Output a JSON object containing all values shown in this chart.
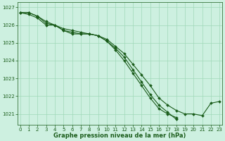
{
  "x": [
    0,
    1,
    2,
    3,
    4,
    5,
    6,
    7,
    8,
    9,
    10,
    11,
    12,
    13,
    14,
    15,
    16,
    17,
    18,
    19,
    20,
    21,
    22,
    23
  ],
  "line1": [
    1026.7,
    1026.7,
    1026.5,
    1026.2,
    1026.0,
    1025.8,
    1025.7,
    1025.6,
    1025.5,
    1025.4,
    1025.2,
    1024.8,
    1024.4,
    1023.8,
    1023.2,
    1022.6,
    1021.9,
    1021.5,
    1021.2,
    1021.0,
    1021.0,
    1020.9,
    1021.6,
    1021.7
  ],
  "line2": [
    1026.7,
    1026.7,
    1026.5,
    1026.1,
    1026.0,
    1025.7,
    1025.6,
    1025.5,
    1025.5,
    1025.4,
    1025.1,
    1024.6,
    1024.0,
    1023.3,
    1022.6,
    1021.9,
    1021.3,
    1021.0,
    1020.8,
    null,
    null,
    null,
    null,
    null
  ],
  "line3": [
    1026.7,
    1026.6,
    1026.4,
    1026.0,
    1026.0,
    1025.7,
    1025.5,
    1025.5,
    1025.5,
    1025.4,
    1025.1,
    1024.7,
    1024.2,
    1023.5,
    1022.8,
    1022.1,
    1021.5,
    1021.1,
    1020.7,
    null,
    null,
    null,
    null,
    null
  ],
  "line_color": "#1a5c1a",
  "marker": "D",
  "marker_size": 2,
  "bg_color": "#cdf0e0",
  "grid_color": "#a0d8b8",
  "text_color": "#1a5c1a",
  "xlabel": "Graphe pression niveau de la mer (hPa)",
  "yticks": [
    1021,
    1022,
    1023,
    1024,
    1025,
    1026,
    1027
  ],
  "xtick_labels": [
    "0",
    "1",
    "2",
    "3",
    "4",
    "5",
    "6",
    "7",
    "8",
    "9",
    "10",
    "11",
    "12",
    "13",
    "14",
    "15",
    "16",
    "17",
    "18",
    "19",
    "20",
    "21",
    "22",
    "23"
  ],
  "xticks": [
    0,
    1,
    2,
    3,
    4,
    5,
    6,
    7,
    8,
    9,
    10,
    11,
    12,
    13,
    14,
    15,
    16,
    17,
    18,
    19,
    20,
    21,
    22,
    23
  ],
  "ylim": [
    1020.4,
    1027.3
  ],
  "xlim": [
    -0.3,
    23.3
  ],
  "figsize": [
    3.2,
    2.0
  ],
  "dpi": 100
}
